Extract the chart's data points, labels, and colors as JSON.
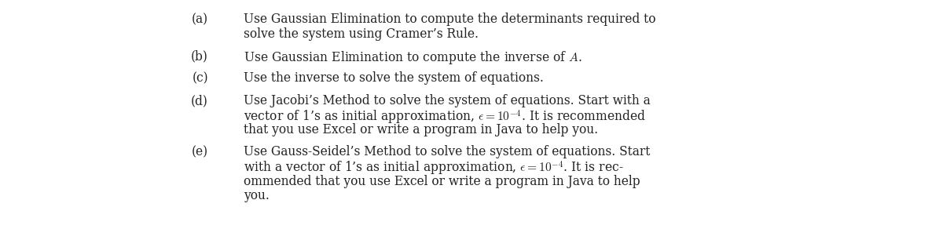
{
  "background_color": "#ffffff",
  "text_color": "#222222",
  "figsize": [
    12.0,
    2.92
  ],
  "dpi": 100,
  "font_size": 11.2,
  "items": [
    {
      "label": "(a)",
      "lines": [
        "Use Gaussian Elimination to compute the determinants required to",
        "solve the system using Cramer’s Rule."
      ],
      "continuation_indent": true
    },
    {
      "label": "(b)",
      "lines": [
        "Use Gaussian Elimination to compute the inverse of $A$."
      ],
      "continuation_indent": false
    },
    {
      "label": "(c)",
      "lines": [
        "Use the inverse to solve the system of equations."
      ],
      "continuation_indent": false
    },
    {
      "label": "(d)",
      "lines": [
        "Use Jacobi’s Method to solve the system of equations. Start with a",
        "vector of 1’s as initial approximation, $\\epsilon = 10^{-4}$. It is recommended",
        "that you use Excel or write a program in Java to help you."
      ],
      "continuation_indent": true
    },
    {
      "label": "(e)",
      "lines": [
        "Use Gauss-Seidel’s Method to solve the system of equations. Start",
        "with a vector of 1’s as initial approximation, $\\epsilon = 10^{-4}$. It is rec-",
        "ommended that you use Excel or write a program in Java to help",
        "you."
      ],
      "continuation_indent": true
    }
  ]
}
